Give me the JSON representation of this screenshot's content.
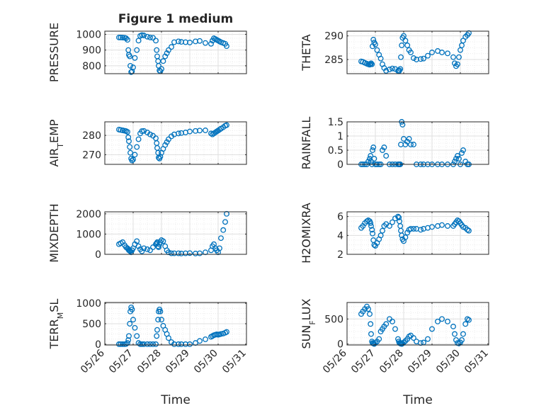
{
  "figure": {
    "title": "Figure 1 medium"
  },
  "colors": {
    "marker": "#0072BD",
    "axis": "#262626",
    "grid": "#dfdfdf",
    "minor_grid": "#ececec",
    "background": "#ffffff"
  },
  "chart_data": [
    {
      "type": "scatter",
      "id": "pressure",
      "title": "Figure 1 medium",
      "ylabel": "PRESSURE",
      "xlabel": "",
      "xlim": [
        26,
        31
      ],
      "ylim": [
        750,
        1020
      ],
      "yticks": [
        800,
        900,
        1000
      ],
      "x_tick_labels": [
        "05/26",
        "05/27",
        "05/28",
        "05/29",
        "05/30",
        "05/31"
      ],
      "show_x_tick_labels": false,
      "grid": true,
      "minor_grid": true,
      "x": [
        26.5,
        26.56,
        26.63,
        26.7,
        26.75,
        26.8,
        26.83,
        26.85,
        26.88,
        26.9,
        26.93,
        26.96,
        27.0,
        27.06,
        27.13,
        27.19,
        27.25,
        27.31,
        27.38,
        27.5,
        27.6,
        27.7,
        27.8,
        27.83,
        27.85,
        27.88,
        27.9,
        27.93,
        27.96,
        28.0,
        28.06,
        28.13,
        28.19,
        28.25,
        28.35,
        28.45,
        28.6,
        28.7,
        28.85,
        29.0,
        29.2,
        29.35,
        29.55,
        29.75,
        29.8,
        29.85,
        29.9,
        29.95,
        30.0,
        30.05,
        30.1,
        30.18,
        30.25,
        30.3
      ],
      "y": [
        980,
        980,
        979,
        978,
        975,
        965,
        900,
        870,
        860,
        800,
        760,
        765,
        790,
        850,
        900,
        960,
        990,
        995,
        993,
        985,
        980,
        978,
        960,
        900,
        860,
        830,
        800,
        770,
        765,
        780,
        830,
        860,
        880,
        900,
        920,
        950,
        955,
        952,
        950,
        948,
        955,
        958,
        945,
        940,
        960,
        975,
        970,
        965,
        960,
        955,
        950,
        945,
        940,
        925
      ]
    },
    {
      "type": "scatter",
      "id": "theta",
      "title": "",
      "ylabel": "THETA",
      "xlabel": "",
      "xlim": [
        26,
        31
      ],
      "ylim": [
        282,
        291
      ],
      "yticks": [
        285,
        290
      ],
      "x_tick_labels": [
        "05/26",
        "05/27",
        "05/28",
        "05/29",
        "05/30",
        "05/31"
      ],
      "show_x_tick_labels": false,
      "grid": true,
      "minor_grid": true,
      "x": [
        26.5,
        26.56,
        26.63,
        26.7,
        26.75,
        26.8,
        26.83,
        26.85,
        26.88,
        26.9,
        26.93,
        26.96,
        27.0,
        27.06,
        27.13,
        27.19,
        27.25,
        27.31,
        27.38,
        27.5,
        27.6,
        27.7,
        27.8,
        27.83,
        27.85,
        27.88,
        27.9,
        27.93,
        27.96,
        28.0,
        28.06,
        28.13,
        28.19,
        28.25,
        28.35,
        28.45,
        28.6,
        28.7,
        28.85,
        29.0,
        29.2,
        29.35,
        29.55,
        29.75,
        29.8,
        29.85,
        29.9,
        29.95,
        30.0,
        30.05,
        30.1,
        30.18,
        30.25,
        30.3
      ],
      "y": [
        284.6,
        284.5,
        284.3,
        284.1,
        284.0,
        283.9,
        284.0,
        284.2,
        284.0,
        287.8,
        289.2,
        288.6,
        288.2,
        287.0,
        286.0,
        285.2,
        284.0,
        283.2,
        282.6,
        282.9,
        283.1,
        283.0,
        282.6,
        282.5,
        282.7,
        283.0,
        285.5,
        288.0,
        289.6,
        290.0,
        289.0,
        288.0,
        287.0,
        286.5,
        285.3,
        285.0,
        285.1,
        285.2,
        285.8,
        286.5,
        286.8,
        286.5,
        286.3,
        285.5,
        284.2,
        283.6,
        284.0,
        285.5,
        287.0,
        288.0,
        289.0,
        289.8,
        290.2,
        290.6
      ]
    },
    {
      "type": "scatter",
      "id": "air_temp",
      "title": "",
      "ylabel": "AIR_TEMP",
      "xlabel": "",
      "xlim": [
        26,
        31
      ],
      "ylim": [
        265,
        287
      ],
      "yticks": [
        270,
        280
      ],
      "x_tick_labels": [
        "05/26",
        "05/27",
        "05/28",
        "05/29",
        "05/30",
        "05/31"
      ],
      "show_x_tick_labels": false,
      "grid": true,
      "minor_grid": true,
      "x": [
        26.5,
        26.56,
        26.63,
        26.7,
        26.75,
        26.8,
        26.83,
        26.85,
        26.88,
        26.9,
        26.93,
        26.96,
        27.0,
        27.06,
        27.13,
        27.19,
        27.25,
        27.31,
        27.38,
        27.5,
        27.6,
        27.7,
        27.8,
        27.83,
        27.85,
        27.88,
        27.9,
        27.93,
        27.96,
        28.0,
        28.06,
        28.13,
        28.19,
        28.25,
        28.35,
        28.45,
        28.6,
        28.7,
        28.85,
        29.0,
        29.2,
        29.35,
        29.55,
        29.75,
        29.8,
        29.85,
        29.9,
        29.95,
        30.0,
        30.05,
        30.1,
        30.18,
        30.25,
        30.3
      ],
      "y": [
        283.0,
        282.8,
        282.6,
        282.4,
        282.2,
        281.8,
        279.0,
        277.0,
        274.0,
        271.0,
        268.0,
        267.0,
        267.5,
        270.0,
        274.0,
        278.0,
        281.0,
        282.2,
        282.3,
        281.5,
        280.5,
        279.8,
        278.5,
        276.0,
        273.5,
        271.0,
        268.5,
        268.0,
        269.0,
        271.0,
        273.0,
        275.0,
        276.5,
        278.0,
        279.5,
        280.5,
        281.0,
        281.2,
        281.5,
        282.0,
        282.3,
        282.5,
        282.6,
        281.0,
        280.5,
        281.0,
        281.5,
        282.0,
        282.5,
        283.0,
        283.5,
        284.2,
        285.0,
        285.3
      ]
    },
    {
      "type": "scatter",
      "id": "rainfall",
      "title": "",
      "ylabel": "RAINFALL",
      "xlabel": "",
      "xlim": [
        26,
        31
      ],
      "ylim": [
        0,
        1.5
      ],
      "yticks": [
        0,
        0.5,
        1,
        1.5
      ],
      "x_tick_labels": [
        "05/26",
        "05/27",
        "05/28",
        "05/29",
        "05/30",
        "05/31"
      ],
      "show_x_tick_labels": false,
      "grid": true,
      "minor_grid": true,
      "x": [
        26.5,
        26.56,
        26.63,
        26.7,
        26.75,
        26.8,
        26.83,
        26.85,
        26.88,
        26.9,
        26.93,
        26.96,
        27.0,
        27.06,
        27.13,
        27.19,
        27.25,
        27.31,
        27.38,
        27.5,
        27.6,
        27.7,
        27.8,
        27.83,
        27.85,
        27.88,
        27.9,
        27.93,
        27.96,
        28.0,
        28.06,
        28.13,
        28.19,
        28.25,
        28.35,
        28.45,
        28.6,
        28.7,
        28.85,
        29.0,
        29.2,
        29.35,
        29.55,
        29.75,
        29.8,
        29.85,
        29.9,
        29.95,
        30.0,
        30.05,
        30.1,
        30.18,
        30.25,
        30.3
      ],
      "y": [
        0,
        0,
        0,
        0,
        0.1,
        0.2,
        0.3,
        0.1,
        0,
        0.5,
        0.6,
        0.2,
        0,
        0,
        0,
        0,
        0.5,
        0.6,
        0.3,
        0,
        0,
        0,
        0,
        0,
        0,
        0,
        0.7,
        1.5,
        1.4,
        0.9,
        0.7,
        0.8,
        0.9,
        0.7,
        0.7,
        0,
        0,
        0,
        0,
        0,
        0,
        0,
        0,
        0,
        0.1,
        0.2,
        0.3,
        0.2,
        0,
        0.4,
        0.5,
        0.1,
        0,
        0
      ]
    },
    {
      "type": "scatter",
      "id": "mixdepth",
      "title": "",
      "ylabel": "MIXDEPTH",
      "xlabel": "",
      "xlim": [
        26,
        31
      ],
      "ylim": [
        0,
        2100
      ],
      "yticks": [
        0,
        1000,
        2000
      ],
      "x_tick_labels": [
        "05/26",
        "05/27",
        "05/28",
        "05/29",
        "05/30",
        "05/31"
      ],
      "show_x_tick_labels": false,
      "grid": true,
      "minor_grid": true,
      "x": [
        26.5,
        26.56,
        26.63,
        26.7,
        26.75,
        26.8,
        26.83,
        26.85,
        26.88,
        26.9,
        26.93,
        26.96,
        27.0,
        27.06,
        27.13,
        27.19,
        27.25,
        27.31,
        27.38,
        27.5,
        27.6,
        27.7,
        27.8,
        27.83,
        27.85,
        27.88,
        27.9,
        27.93,
        27.96,
        28.0,
        28.06,
        28.13,
        28.19,
        28.25,
        28.35,
        28.45,
        28.6,
        28.7,
        28.85,
        29.0,
        29.2,
        29.35,
        29.55,
        29.75,
        29.8,
        29.85,
        29.9,
        29.95,
        30.0,
        30.05,
        30.1,
        30.18,
        30.25,
        30.3
      ],
      "y": [
        500,
        550,
        600,
        450,
        350,
        300,
        250,
        200,
        180,
        150,
        100,
        200,
        300,
        500,
        650,
        400,
        250,
        150,
        300,
        250,
        200,
        350,
        500,
        550,
        600,
        400,
        350,
        500,
        600,
        700,
        650,
        400,
        200,
        100,
        50,
        50,
        50,
        40,
        50,
        60,
        40,
        50,
        100,
        200,
        400,
        500,
        300,
        200,
        100,
        300,
        800,
        1200,
        1600,
        2000
      ]
    },
    {
      "type": "scatter",
      "id": "h2omixra",
      "title": "",
      "ylabel": "H2OMIXRA",
      "xlabel": "",
      "xlim": [
        26,
        31
      ],
      "ylim": [
        2,
        6.5
      ],
      "yticks": [
        2,
        4,
        6
      ],
      "x_tick_labels": [
        "05/26",
        "05/27",
        "05/28",
        "05/29",
        "05/30",
        "05/31"
      ],
      "show_x_tick_labels": false,
      "grid": true,
      "minor_grid": true,
      "x": [
        26.5,
        26.56,
        26.63,
        26.7,
        26.75,
        26.8,
        26.83,
        26.85,
        26.88,
        26.9,
        26.93,
        26.96,
        27.0,
        27.06,
        27.13,
        27.19,
        27.25,
        27.31,
        27.38,
        27.5,
        27.6,
        27.7,
        27.8,
        27.83,
        27.85,
        27.88,
        27.9,
        27.93,
        27.96,
        28.0,
        28.06,
        28.13,
        28.19,
        28.25,
        28.35,
        28.45,
        28.6,
        28.7,
        28.85,
        29.0,
        29.2,
        29.35,
        29.55,
        29.75,
        29.8,
        29.85,
        29.9,
        29.95,
        30.0,
        30.05,
        30.1,
        30.18,
        30.25,
        30.3
      ],
      "y": [
        4.8,
        5.0,
        5.3,
        5.5,
        5.6,
        5.5,
        5.3,
        5.0,
        4.6,
        4.2,
        3.5,
        3.0,
        2.9,
        3.2,
        3.6,
        4.0,
        4.5,
        5.0,
        5.2,
        5.0,
        5.4,
        5.8,
        6.0,
        5.9,
        5.5,
        5.0,
        4.5,
        4.0,
        3.6,
        3.4,
        3.8,
        4.3,
        4.6,
        4.7,
        4.7,
        4.7,
        4.6,
        4.7,
        4.8,
        4.9,
        5.0,
        5.1,
        5.0,
        5.0,
        5.2,
        5.4,
        5.6,
        5.5,
        5.3,
        5.1,
        4.9,
        4.8,
        4.6,
        4.5
      ]
    },
    {
      "type": "scatter",
      "id": "terr_msl",
      "title": "",
      "ylabel": "TERR_MSL",
      "xlabel": "Time",
      "xlim": [
        26,
        31
      ],
      "ylim": [
        -20,
        1020
      ],
      "yticks": [
        0,
        500,
        1000
      ],
      "x_tick_labels": [
        "05/26",
        "05/27",
        "05/28",
        "05/29",
        "05/30",
        "05/31"
      ],
      "show_x_tick_labels": true,
      "grid": true,
      "minor_grid": true,
      "x": [
        26.5,
        26.56,
        26.63,
        26.7,
        26.75,
        26.8,
        26.83,
        26.85,
        26.88,
        26.9,
        26.93,
        26.96,
        27.0,
        27.06,
        27.13,
        27.19,
        27.25,
        27.31,
        27.38,
        27.5,
        27.6,
        27.7,
        27.8,
        27.83,
        27.85,
        27.88,
        27.9,
        27.93,
        27.96,
        28.0,
        28.06,
        28.13,
        28.19,
        28.25,
        28.35,
        28.45,
        28.6,
        28.7,
        28.85,
        29.0,
        29.2,
        29.35,
        29.55,
        29.75,
        29.8,
        29.85,
        29.9,
        29.95,
        30.0,
        30.05,
        30.1,
        30.18,
        30.25,
        30.3
      ],
      "y": [
        0,
        0,
        0,
        0,
        5,
        30,
        100,
        200,
        500,
        800,
        900,
        850,
        600,
        400,
        200,
        30,
        0,
        0,
        0,
        0,
        0,
        0,
        0,
        200,
        350,
        600,
        800,
        850,
        800,
        600,
        450,
        350,
        250,
        150,
        50,
        0,
        0,
        0,
        0,
        0,
        30,
        80,
        120,
        180,
        200,
        220,
        230,
        240,
        230,
        240,
        250,
        260,
        280,
        300
      ]
    },
    {
      "type": "scatter",
      "id": "sun_flux",
      "title": "",
      "ylabel": "SUN_FLUX",
      "xlabel": "Time",
      "xlim": [
        26,
        31
      ],
      "ylim": [
        -20,
        830
      ],
      "yticks": [
        0,
        500
      ],
      "x_tick_labels": [
        "05/26",
        "05/27",
        "05/28",
        "05/29",
        "05/30",
        "05/31"
      ],
      "show_x_tick_labels": true,
      "grid": true,
      "minor_grid": true,
      "x": [
        26.5,
        26.56,
        26.63,
        26.7,
        26.75,
        26.8,
        26.83,
        26.85,
        26.88,
        26.9,
        26.93,
        26.96,
        27.0,
        27.06,
        27.13,
        27.19,
        27.25,
        27.31,
        27.38,
        27.5,
        27.6,
        27.7,
        27.8,
        27.83,
        27.85,
        27.88,
        27.9,
        27.93,
        27.96,
        28.0,
        28.06,
        28.13,
        28.19,
        28.25,
        28.35,
        28.45,
        28.6,
        28.7,
        28.85,
        29.0,
        29.2,
        29.35,
        29.55,
        29.75,
        29.8,
        29.85,
        29.9,
        29.95,
        30.0,
        30.05,
        30.1,
        30.18,
        30.25,
        30.3
      ],
      "y": [
        600,
        650,
        700,
        750,
        700,
        600,
        400,
        200,
        50,
        20,
        10,
        0,
        20,
        50,
        100,
        250,
        300,
        350,
        400,
        500,
        450,
        300,
        100,
        50,
        20,
        10,
        5,
        0,
        10,
        30,
        60,
        100,
        150,
        170,
        120,
        50,
        20,
        30,
        100,
        300,
        450,
        500,
        450,
        350,
        200,
        80,
        20,
        10,
        30,
        80,
        200,
        400,
        500,
        480
      ]
    }
  ]
}
